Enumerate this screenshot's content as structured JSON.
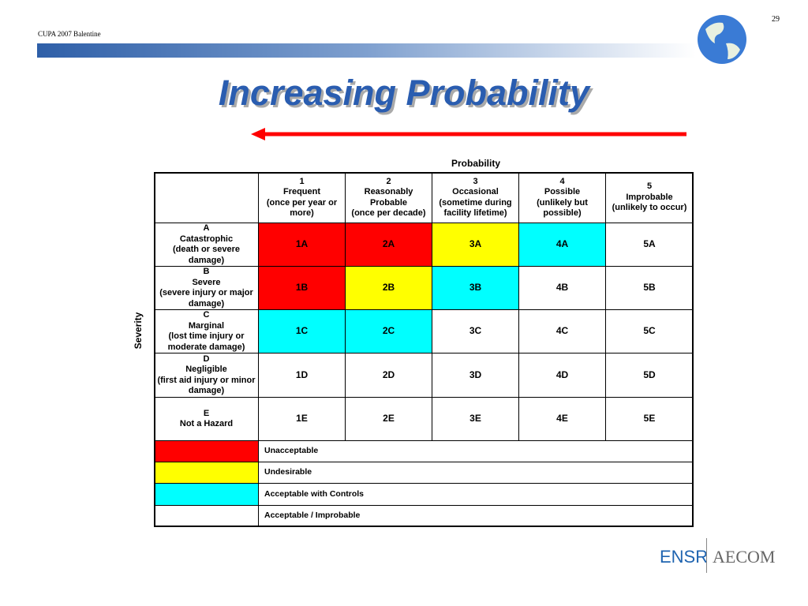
{
  "header": {
    "left": "CUPA 2007 Balentine",
    "page": "29"
  },
  "title": "Increasing Probability",
  "table": {
    "column_axis": "Probability",
    "row_axis": "Severity",
    "columns": [
      [
        "1",
        "Frequent",
        "(once per year or",
        "more)"
      ],
      [
        "2",
        "Reasonably",
        "Probable",
        "(once per decade)"
      ],
      [
        "3",
        "Occasional",
        "(sometime during",
        "facility lifetime)"
      ],
      [
        "4",
        "Possible",
        "(unlikely but",
        "possible)"
      ],
      [
        "5",
        "Improbable",
        "(unlikely to occur)"
      ]
    ],
    "rows": [
      {
        "label": [
          "A",
          "Catastrophic",
          "(death or severe damage)"
        ],
        "cells": [
          {
            "text": "1A",
            "color": "#ff0000"
          },
          {
            "text": "2A",
            "color": "#ff0000"
          },
          {
            "text": "3A",
            "color": "#ffff00"
          },
          {
            "text": "4A",
            "color": "#00ffff"
          },
          {
            "text": "5A",
            "color": "#ffffff"
          }
        ]
      },
      {
        "label": [
          "B",
          "Severe",
          "(severe injury or major",
          "damage)"
        ],
        "cells": [
          {
            "text": "1B",
            "color": "#ff0000"
          },
          {
            "text": "2B",
            "color": "#ffff00"
          },
          {
            "text": "3B",
            "color": "#00ffff"
          },
          {
            "text": "4B",
            "color": "#ffffff"
          },
          {
            "text": "5B",
            "color": "#ffffff"
          }
        ]
      },
      {
        "label": [
          "C",
          "Marginal",
          "(lost time injury or",
          "moderate damage)"
        ],
        "cells": [
          {
            "text": "1C",
            "color": "#00ffff"
          },
          {
            "text": "2C",
            "color": "#00ffff"
          },
          {
            "text": "3C",
            "color": "#ffffff"
          },
          {
            "text": "4C",
            "color": "#ffffff"
          },
          {
            "text": "5C",
            "color": "#ffffff"
          }
        ]
      },
      {
        "label": [
          "D",
          "Negligible",
          "(first aid injury or minor",
          "damage)"
        ],
        "cells": [
          {
            "text": "1D",
            "color": "#ffffff"
          },
          {
            "text": "2D",
            "color": "#ffffff"
          },
          {
            "text": "3D",
            "color": "#ffffff"
          },
          {
            "text": "4D",
            "color": "#ffffff"
          },
          {
            "text": "5D",
            "color": "#ffffff"
          }
        ]
      },
      {
        "label": [
          "E",
          "Not a Hazard"
        ],
        "cells": [
          {
            "text": "1E",
            "color": "#ffffff"
          },
          {
            "text": "2E",
            "color": "#ffffff"
          },
          {
            "text": "3E",
            "color": "#ffffff"
          },
          {
            "text": "4E",
            "color": "#ffffff"
          },
          {
            "text": "5E",
            "color": "#ffffff"
          }
        ]
      }
    ]
  },
  "legend": [
    {
      "color": "#ff0000",
      "label": "Unacceptable"
    },
    {
      "color": "#ffff00",
      "label": "Undesirable"
    },
    {
      "color": "#00ffff",
      "label": "Acceptable with Controls"
    },
    {
      "color": "#ffffff",
      "label": "Acceptable / Improbable"
    }
  ],
  "footer": {
    "logo_left": "ENSR",
    "logo_right": "AECOM"
  }
}
